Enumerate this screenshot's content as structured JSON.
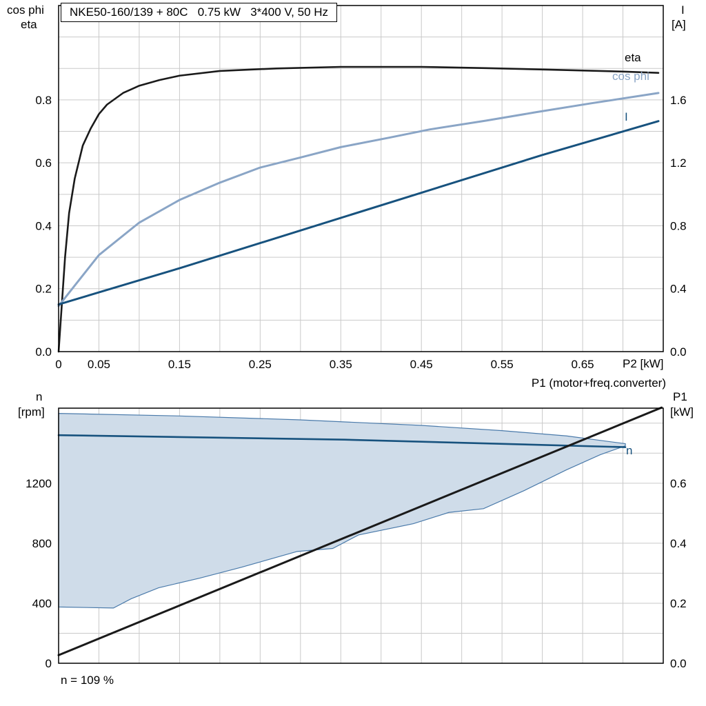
{
  "header": {
    "left_axis_line1": "cos phi",
    "left_axis_line2": "eta",
    "right_axis_line1": "I",
    "right_axis_line2": "[A]"
  },
  "bottom_header": {
    "left_line1": "n",
    "left_line2": "[rpm]",
    "right_line1": "P1",
    "right_line2": "[kW]",
    "top_right": "P1 (motor+freq.converter)"
  },
  "colors": {
    "eta": "#1a1a1a",
    "cos_phi": "#8aa5c6",
    "current": "#17527e",
    "speed": "#17527e",
    "p1": "#1a1a1a",
    "area_fill": "#cfdce9",
    "area_stroke": "#4a7aaa",
    "grid": "#c9c9c9",
    "border": "#000000"
  },
  "chart_data": [
    {
      "type": "line",
      "title": "NKE50-160/139 + 80C   0.75 kW   3*400 V, 50 Hz",
      "x_axis": {
        "label": "P2 [kW]",
        "min": 0,
        "max": 0.75,
        "grid_step": 0.05,
        "ticks": [
          {
            "v": 0,
            "label": "0"
          },
          {
            "v": 0.05,
            "label": "0.05"
          },
          {
            "v": 0.15,
            "label": "0.15"
          },
          {
            "v": 0.25,
            "label": "0.25"
          },
          {
            "v": 0.35,
            "label": "0.35"
          },
          {
            "v": 0.45,
            "label": "0.45"
          },
          {
            "v": 0.55,
            "label": "0.55"
          },
          {
            "v": 0.65,
            "label": "0.65"
          }
        ]
      },
      "y_left_axis": {
        "label": "cos phi / eta",
        "min": 0,
        "max": 1.1,
        "grid_step": 0.1,
        "ticks": [
          {
            "v": 0.0,
            "label": "0.0"
          },
          {
            "v": 0.2,
            "label": "0.2"
          },
          {
            "v": 0.4,
            "label": "0.4"
          },
          {
            "v": 0.6,
            "label": "0.6"
          },
          {
            "v": 0.8,
            "label": "0.8"
          }
        ]
      },
      "y_right_axis": {
        "label": "I [A]",
        "min": 0,
        "max": 2.2,
        "ticks": [
          {
            "v": 0.0,
            "label": "0.0"
          },
          {
            "v": 0.4,
            "label": "0.4"
          },
          {
            "v": 0.8,
            "label": "0.8"
          },
          {
            "v": 1.2,
            "label": "1.2"
          },
          {
            "v": 1.6,
            "label": "1.6"
          }
        ]
      },
      "curve_labels": {
        "eta": "eta",
        "cos_phi": "cos phi",
        "current": "I"
      },
      "series": [
        {
          "name": "eta",
          "axis": "left",
          "color_key": "eta",
          "width": 2.6,
          "points": [
            [
              0,
              0
            ],
            [
              0.004,
              0.15
            ],
            [
              0.008,
              0.3
            ],
            [
              0.013,
              0.44
            ],
            [
              0.02,
              0.55
            ],
            [
              0.03,
              0.655
            ],
            [
              0.04,
              0.71
            ],
            [
              0.05,
              0.755
            ],
            [
              0.06,
              0.785
            ],
            [
              0.08,
              0.822
            ],
            [
              0.1,
              0.845
            ],
            [
              0.125,
              0.863
            ],
            [
              0.15,
              0.877
            ],
            [
              0.2,
              0.892
            ],
            [
              0.27,
              0.9
            ],
            [
              0.35,
              0.905
            ],
            [
              0.45,
              0.905
            ],
            [
              0.53,
              0.901
            ],
            [
              0.61,
              0.896
            ],
            [
              0.7,
              0.89
            ],
            [
              0.744,
              0.886
            ]
          ]
        },
        {
          "name": "cos phi",
          "axis": "left",
          "color_key": "cos_phi",
          "width": 3,
          "points": [
            [
              0,
              0.145
            ],
            [
              0.02,
              0.21
            ],
            [
              0.05,
              0.307
            ],
            [
              0.1,
              0.41
            ],
            [
              0.15,
              0.482
            ],
            [
              0.2,
              0.537
            ],
            [
              0.25,
              0.585
            ],
            [
              0.3,
              0.617
            ],
            [
              0.35,
              0.65
            ],
            [
              0.41,
              0.68
            ],
            [
              0.46,
              0.706
            ],
            [
              0.53,
              0.734
            ],
            [
              0.59,
              0.76
            ],
            [
              0.66,
              0.789
            ],
            [
              0.744,
              0.822
            ]
          ]
        },
        {
          "name": "I",
          "axis": "right",
          "color_key": "current",
          "width": 3,
          "points": [
            [
              0,
              0.3
            ],
            [
              0.15,
              0.53
            ],
            [
              0.3,
              0.77
            ],
            [
              0.45,
              1.01
            ],
            [
              0.6,
              1.25
            ],
            [
              0.744,
              1.465
            ]
          ]
        }
      ]
    },
    {
      "type": "line+area",
      "title": "Speed and input power vs P2",
      "annotation": "n = 109 %",
      "curve_labels": {
        "n": "n"
      },
      "x_axis": {
        "label": "",
        "min": 0,
        "max": 0.75,
        "grid_step": 0.05,
        "ticks": []
      },
      "y_left_axis": {
        "label": "n [rpm]",
        "min": 0,
        "max": 1700,
        "grid_step": 200,
        "ticks": [
          {
            "v": 0,
            "label": "0"
          },
          {
            "v": 400,
            "label": "400"
          },
          {
            "v": 800,
            "label": "800"
          },
          {
            "v": 1200,
            "label": "1200"
          }
        ]
      },
      "y_right_axis": {
        "label": "P1 [kW]",
        "min": 0,
        "max": 0.85,
        "ticks": [
          {
            "v": 0.0,
            "label": "0.0"
          },
          {
            "v": 0.2,
            "label": "0.2"
          },
          {
            "v": 0.4,
            "label": "0.4"
          },
          {
            "v": 0.6,
            "label": "0.6"
          }
        ]
      },
      "area": {
        "name": "speed-operating-range",
        "axis": "left",
        "fill_key": "area_fill",
        "stroke_key": "area_stroke",
        "upper": [
          [
            0,
            1665
          ],
          [
            0.15,
            1648
          ],
          [
            0.3,
            1622
          ],
          [
            0.45,
            1585
          ],
          [
            0.55,
            1550
          ],
          [
            0.63,
            1515
          ],
          [
            0.703,
            1463
          ]
        ],
        "lower": [
          [
            0,
            375
          ],
          [
            0.068,
            368
          ],
          [
            0.09,
            430
          ],
          [
            0.124,
            503
          ],
          [
            0.175,
            567
          ],
          [
            0.227,
            640
          ],
          [
            0.296,
            745
          ],
          [
            0.34,
            765
          ],
          [
            0.372,
            855
          ],
          [
            0.44,
            930
          ],
          [
            0.484,
            1005
          ],
          [
            0.527,
            1030
          ],
          [
            0.578,
            1152
          ],
          [
            0.63,
            1289
          ],
          [
            0.672,
            1390
          ],
          [
            0.703,
            1449
          ]
        ]
      },
      "series": [
        {
          "name": "n",
          "axis": "left",
          "color_key": "speed",
          "width": 2.6,
          "points": [
            [
              0,
              1520
            ],
            [
              0.355,
              1490
            ],
            [
              0.703,
              1440
            ]
          ]
        },
        {
          "name": "P1",
          "axis": "right",
          "color_key": "p1",
          "width": 3,
          "points": [
            [
              0,
              0.027
            ],
            [
              0.748,
              0.852
            ]
          ]
        }
      ]
    }
  ]
}
